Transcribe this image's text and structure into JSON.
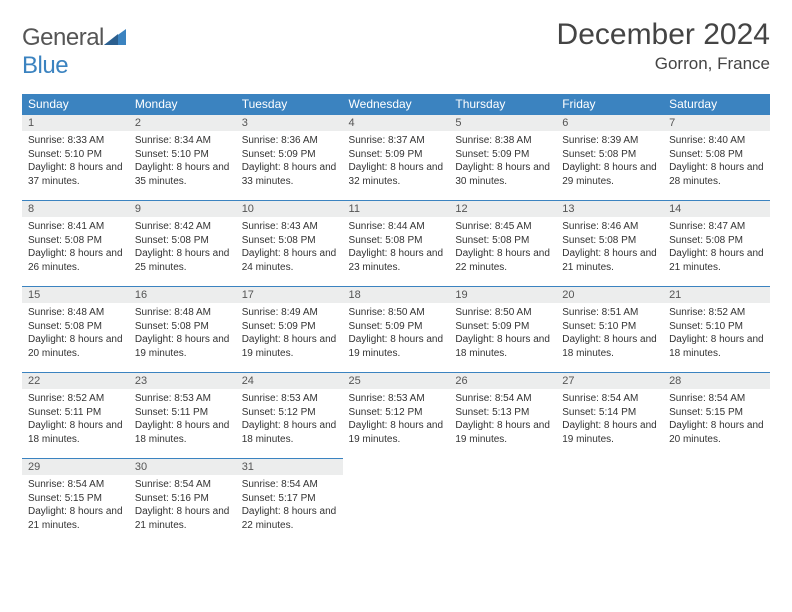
{
  "logo": {
    "text1": "General",
    "text2": "Blue"
  },
  "title": "December 2024",
  "location": "Gorron, France",
  "colors": {
    "header_bg": "#3b83c0",
    "header_text": "#ffffff",
    "daynum_bg": "#eceded",
    "border": "#3b83c0",
    "title_color": "#444444",
    "text_color": "#333333"
  },
  "weekdays": [
    "Sunday",
    "Monday",
    "Tuesday",
    "Wednesday",
    "Thursday",
    "Friday",
    "Saturday"
  ],
  "weeks": [
    [
      {
        "n": "1",
        "sr": "8:33 AM",
        "ss": "5:10 PM",
        "dl": "8 hours and 37 minutes."
      },
      {
        "n": "2",
        "sr": "8:34 AM",
        "ss": "5:10 PM",
        "dl": "8 hours and 35 minutes."
      },
      {
        "n": "3",
        "sr": "8:36 AM",
        "ss": "5:09 PM",
        "dl": "8 hours and 33 minutes."
      },
      {
        "n": "4",
        "sr": "8:37 AM",
        "ss": "5:09 PM",
        "dl": "8 hours and 32 minutes."
      },
      {
        "n": "5",
        "sr": "8:38 AM",
        "ss": "5:09 PM",
        "dl": "8 hours and 30 minutes."
      },
      {
        "n": "6",
        "sr": "8:39 AM",
        "ss": "5:08 PM",
        "dl": "8 hours and 29 minutes."
      },
      {
        "n": "7",
        "sr": "8:40 AM",
        "ss": "5:08 PM",
        "dl": "8 hours and 28 minutes."
      }
    ],
    [
      {
        "n": "8",
        "sr": "8:41 AM",
        "ss": "5:08 PM",
        "dl": "8 hours and 26 minutes."
      },
      {
        "n": "9",
        "sr": "8:42 AM",
        "ss": "5:08 PM",
        "dl": "8 hours and 25 minutes."
      },
      {
        "n": "10",
        "sr": "8:43 AM",
        "ss": "5:08 PM",
        "dl": "8 hours and 24 minutes."
      },
      {
        "n": "11",
        "sr": "8:44 AM",
        "ss": "5:08 PM",
        "dl": "8 hours and 23 minutes."
      },
      {
        "n": "12",
        "sr": "8:45 AM",
        "ss": "5:08 PM",
        "dl": "8 hours and 22 minutes."
      },
      {
        "n": "13",
        "sr": "8:46 AM",
        "ss": "5:08 PM",
        "dl": "8 hours and 21 minutes."
      },
      {
        "n": "14",
        "sr": "8:47 AM",
        "ss": "5:08 PM",
        "dl": "8 hours and 21 minutes."
      }
    ],
    [
      {
        "n": "15",
        "sr": "8:48 AM",
        "ss": "5:08 PM",
        "dl": "8 hours and 20 minutes."
      },
      {
        "n": "16",
        "sr": "8:48 AM",
        "ss": "5:08 PM",
        "dl": "8 hours and 19 minutes."
      },
      {
        "n": "17",
        "sr": "8:49 AM",
        "ss": "5:09 PM",
        "dl": "8 hours and 19 minutes."
      },
      {
        "n": "18",
        "sr": "8:50 AM",
        "ss": "5:09 PM",
        "dl": "8 hours and 19 minutes."
      },
      {
        "n": "19",
        "sr": "8:50 AM",
        "ss": "5:09 PM",
        "dl": "8 hours and 18 minutes."
      },
      {
        "n": "20",
        "sr": "8:51 AM",
        "ss": "5:10 PM",
        "dl": "8 hours and 18 minutes."
      },
      {
        "n": "21",
        "sr": "8:52 AM",
        "ss": "5:10 PM",
        "dl": "8 hours and 18 minutes."
      }
    ],
    [
      {
        "n": "22",
        "sr": "8:52 AM",
        "ss": "5:11 PM",
        "dl": "8 hours and 18 minutes."
      },
      {
        "n": "23",
        "sr": "8:53 AM",
        "ss": "5:11 PM",
        "dl": "8 hours and 18 minutes."
      },
      {
        "n": "24",
        "sr": "8:53 AM",
        "ss": "5:12 PM",
        "dl": "8 hours and 18 minutes."
      },
      {
        "n": "25",
        "sr": "8:53 AM",
        "ss": "5:12 PM",
        "dl": "8 hours and 19 minutes."
      },
      {
        "n": "26",
        "sr": "8:54 AM",
        "ss": "5:13 PM",
        "dl": "8 hours and 19 minutes."
      },
      {
        "n": "27",
        "sr": "8:54 AM",
        "ss": "5:14 PM",
        "dl": "8 hours and 19 minutes."
      },
      {
        "n": "28",
        "sr": "8:54 AM",
        "ss": "5:15 PM",
        "dl": "8 hours and 20 minutes."
      }
    ],
    [
      {
        "n": "29",
        "sr": "8:54 AM",
        "ss": "5:15 PM",
        "dl": "8 hours and 21 minutes."
      },
      {
        "n": "30",
        "sr": "8:54 AM",
        "ss": "5:16 PM",
        "dl": "8 hours and 21 minutes."
      },
      {
        "n": "31",
        "sr": "8:54 AM",
        "ss": "5:17 PM",
        "dl": "8 hours and 22 minutes."
      },
      null,
      null,
      null,
      null
    ]
  ],
  "labels": {
    "sunrise": "Sunrise:",
    "sunset": "Sunset:",
    "daylight": "Daylight:"
  }
}
